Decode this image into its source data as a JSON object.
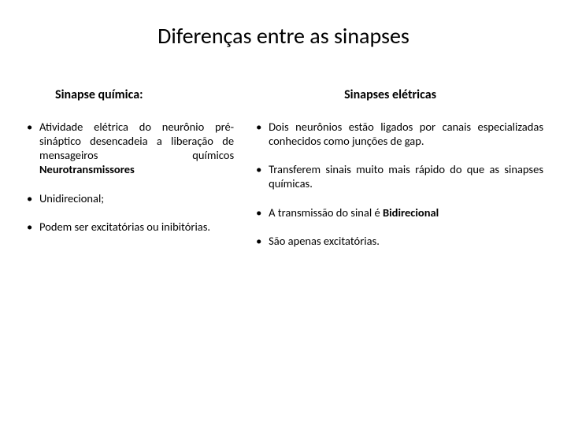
{
  "title": "Diferenças entre as sinapses",
  "left": {
    "heading": "Sinapse química:",
    "items": [
      {
        "html": "Atividade elétrica do neurônio pré-sináptico desencadeia a liberação de mensageiros químicos <b>Neurotransmissores</b>",
        "justify": true
      },
      {
        "html": "Unidirecional;",
        "justify": false
      },
      {
        "html": "Podem ser excitatórias ou inibitórias.",
        "justify": true
      }
    ]
  },
  "right": {
    "heading": "Sinapses elétricas",
    "items": [
      {
        "html": "Dois neurônios estão ligados por canais especializadas conhecidos como junções de gap.",
        "justify": true
      },
      {
        "html": "Transferem sinais muito mais rápido do que as sinapses químicas.",
        "justify": true
      },
      {
        "html": "A transmissão do sinal é <b>Bidirecional</b>",
        "justify": false
      },
      {
        "html": "São apenas excitatórias.",
        "justify": false
      }
    ]
  }
}
